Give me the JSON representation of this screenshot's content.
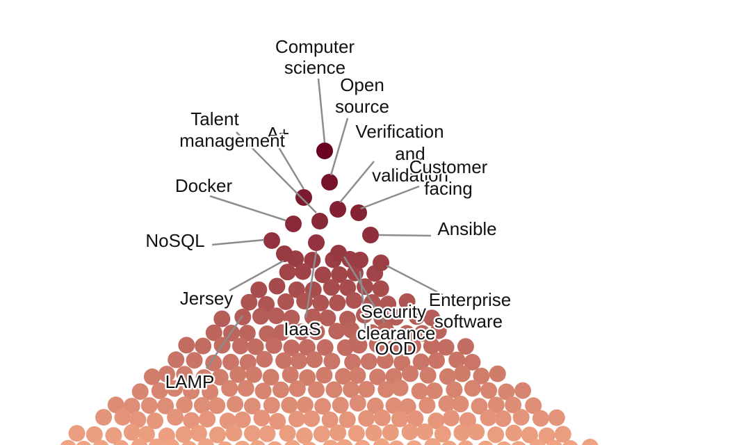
{
  "chart_data": {
    "type": "scatter",
    "subtype": "beeswarm",
    "title": "",
    "xlabel": "",
    "ylabel": "",
    "color_scale": {
      "low": "#f0a383",
      "high": "#67001f"
    },
    "labeled_points": [
      {
        "label": "Computer science",
        "rank": 1
      },
      {
        "label": "Open source",
        "rank": 2
      },
      {
        "label": "A+",
        "rank": 3
      },
      {
        "label": "Talent management",
        "rank": 4
      },
      {
        "label": "Verification and validation",
        "rank": 5
      },
      {
        "label": "Customer facing",
        "rank": 6
      },
      {
        "label": "Docker",
        "rank": 7
      },
      {
        "label": "Ansible",
        "rank": 8
      },
      {
        "label": "NoSQL",
        "rank": 9
      },
      {
        "label": "IaaS",
        "rank": 10
      },
      {
        "label": "Jersey",
        "rank": 11
      },
      {
        "label": "Enterprise software",
        "rank": 12
      },
      {
        "label": "Security clearance",
        "rank": 13
      },
      {
        "label": "OOD",
        "rank": 14
      },
      {
        "label": "LAMP",
        "rank": 15
      }
    ]
  }
}
